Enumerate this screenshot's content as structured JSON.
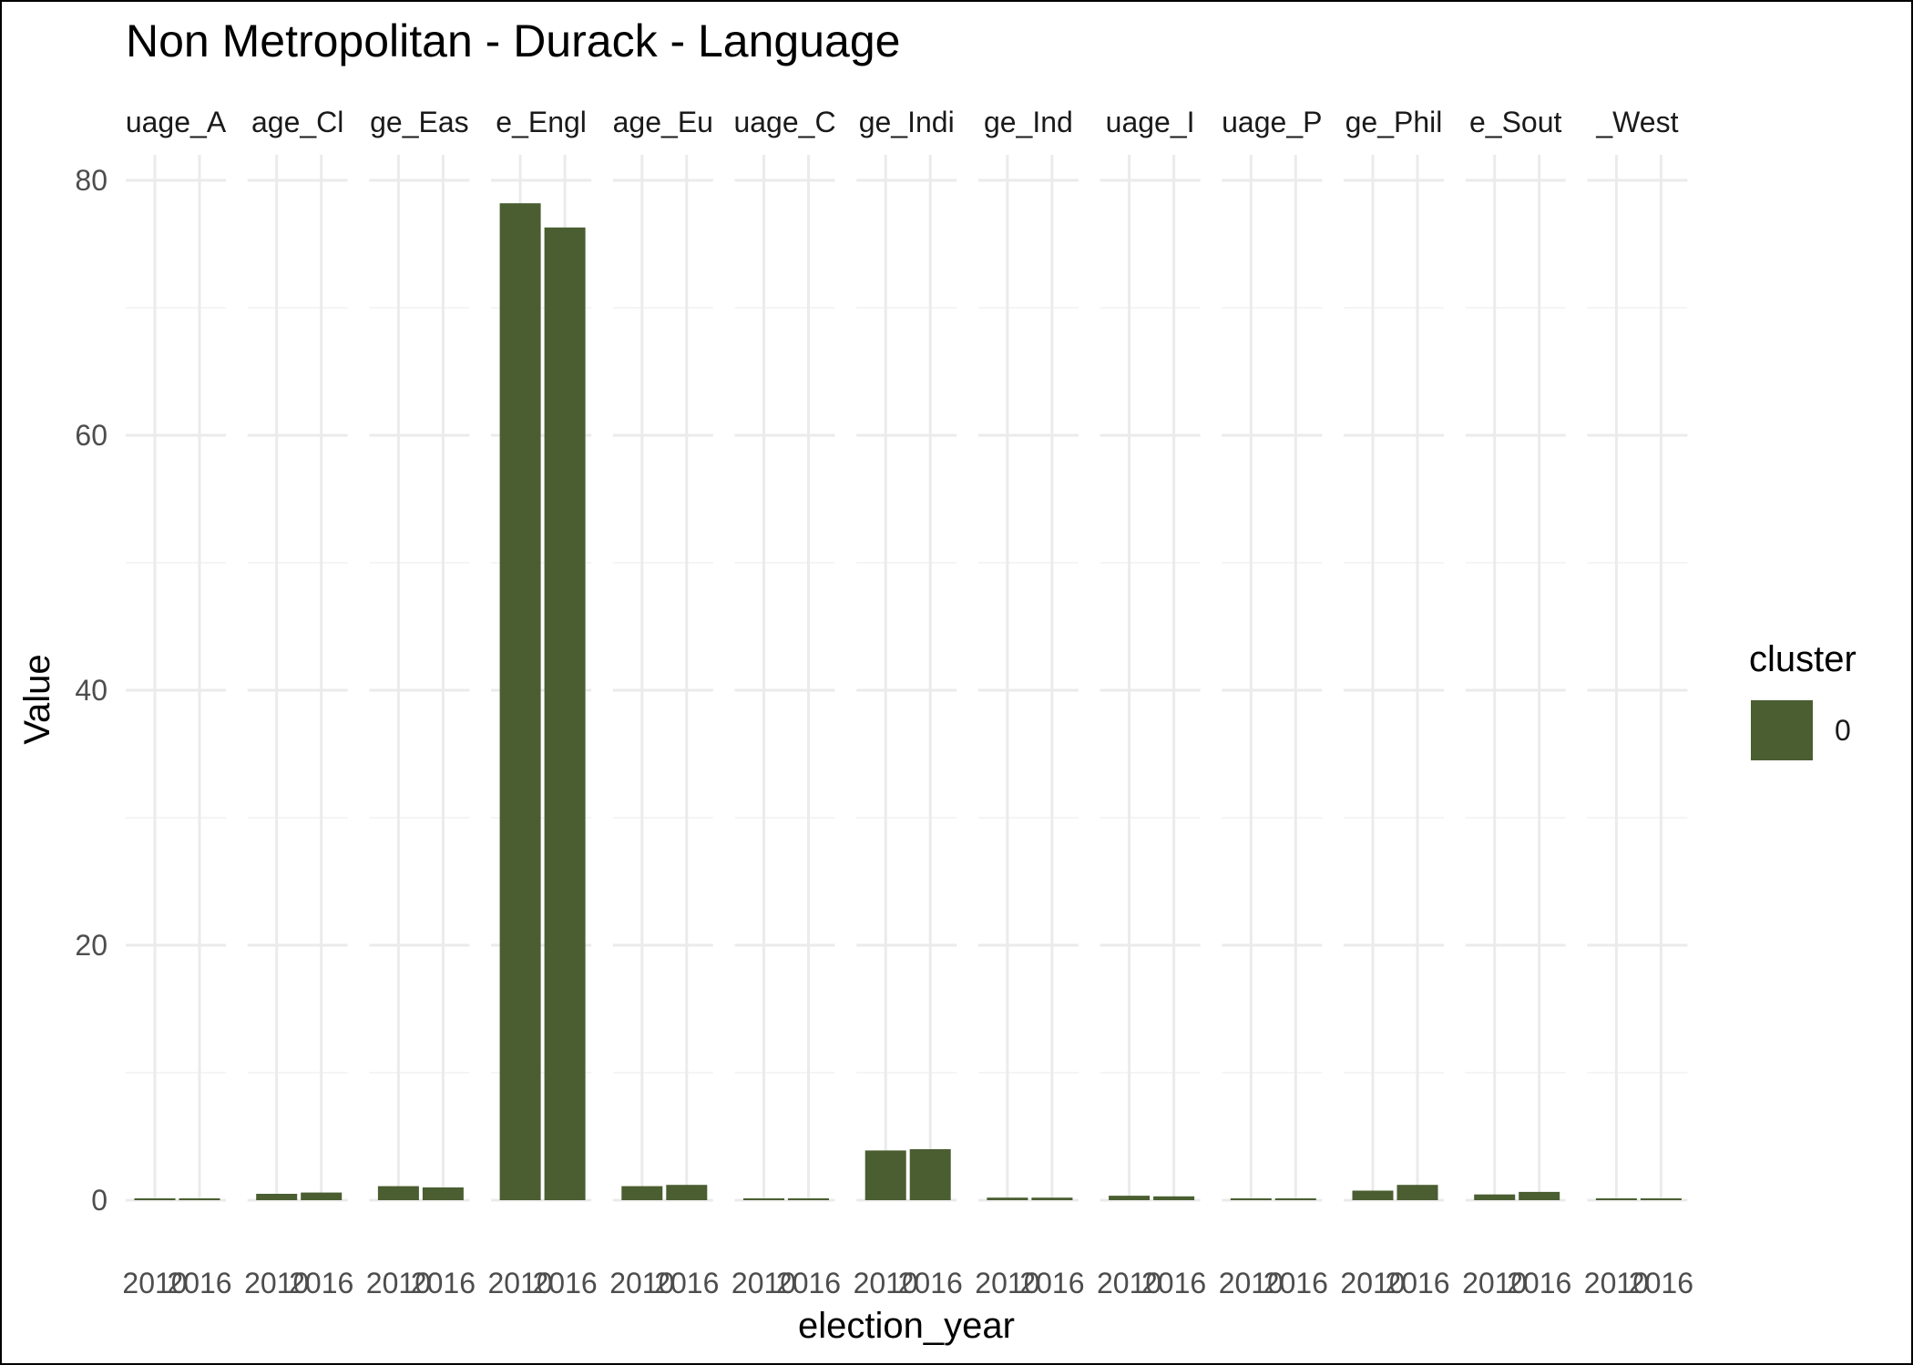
{
  "chart_data": {
    "type": "bar",
    "title": "Non Metropolitan - Durack - Language",
    "xlabel": "election_year",
    "ylabel": "Value",
    "ylim": [
      0,
      80
    ],
    "y_ticks": [
      0,
      20,
      40,
      60,
      80
    ],
    "grid": true,
    "x_categories": [
      "2010",
      "2016"
    ],
    "facets": [
      {
        "label": "uage_A",
        "values": [
          0.1,
          0.1
        ]
      },
      {
        "label": "age_Cl",
        "values": [
          0.5,
          0.6
        ]
      },
      {
        "label": "ge_Eas",
        "values": [
          1.1,
          1.0
        ]
      },
      {
        "label": "e_Engl",
        "values": [
          78.2,
          76.3
        ]
      },
      {
        "label": "age_Eu",
        "values": [
          1.1,
          1.2
        ]
      },
      {
        "label": "uage_C",
        "values": [
          0.1,
          0.05
        ]
      },
      {
        "label": "ge_Indi",
        "values": [
          3.9,
          4.0
        ]
      },
      {
        "label": "ge_Ind",
        "values": [
          0.2,
          0.2
        ]
      },
      {
        "label": "uage_I",
        "values": [
          0.35,
          0.3
        ]
      },
      {
        "label": "uage_P",
        "values": [
          0.05,
          0.05
        ]
      },
      {
        "label": "ge_Phil",
        "values": [
          0.75,
          1.2
        ]
      },
      {
        "label": "e_Sout",
        "values": [
          0.45,
          0.65
        ]
      },
      {
        "label": "_West",
        "values": [
          0.05,
          0.05
        ]
      }
    ],
    "legend": {
      "title": "cluster",
      "placement": "right",
      "entries": [
        {
          "label": "0",
          "color": "#4a5e31"
        }
      ]
    },
    "colors": {
      "bar": "#4a5e31",
      "grid_major": "#ebebeb",
      "grid_minor": "#f5f5f5",
      "axis_text": "#4d4d4d"
    }
  }
}
